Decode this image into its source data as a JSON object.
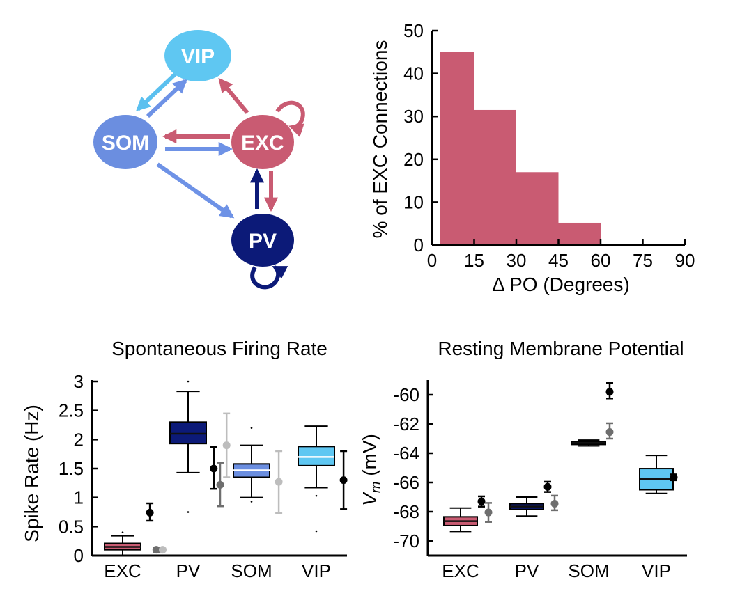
{
  "colors": {
    "exc": "#c95b72",
    "pv": "#0c1a78",
    "som": "#6b8ee0",
    "vip": "#5fc7f2",
    "vip_arrow": "#5bc0ef",
    "som_arrow": "#6e92e6",
    "mid_gray": "#6e6e6e",
    "light_gray": "#bdbdbd",
    "black": "#000000"
  },
  "network": {
    "nodes": {
      "vip": "VIP",
      "som": "SOM",
      "exc": "EXC",
      "pv": "PV"
    }
  },
  "chart_data": [
    {
      "type": "bar",
      "title": "",
      "xlabel": "Δ PO (Degrees)",
      "ylabel": "% of EXC Connections",
      "xlim": [
        0,
        90
      ],
      "ylim": [
        0,
        50
      ],
      "xticks": [
        "0",
        "15",
        "30",
        "45",
        "60",
        "75",
        "90"
      ],
      "yticks": [
        "0",
        "10",
        "20",
        "30",
        "40",
        "50"
      ],
      "bins": [
        [
          0,
          15
        ],
        [
          15,
          30
        ],
        [
          30,
          45
        ],
        [
          45,
          60
        ],
        [
          60,
          75
        ],
        [
          75,
          90
        ]
      ],
      "values": [
        45,
        31.5,
        17,
        5.2,
        0.3,
        0
      ],
      "color": "#c95b72"
    },
    {
      "type": "box",
      "title": "Spontaneous Firing Rate",
      "xlabel": "",
      "ylabel": "Spike Rate (Hz)",
      "ylim": [
        0,
        3
      ],
      "yticks": [
        "0",
        "0.5",
        "1",
        "1.5",
        "2",
        "2.5",
        "3"
      ],
      "categories": [
        "EXC",
        "PV",
        "SOM",
        "VIP"
      ],
      "boxes": [
        {
          "category": "EXC",
          "whisker_low": 0.0,
          "q1": 0.1,
          "median": 0.15,
          "q3": 0.21,
          "whisker_high": 0.34,
          "outliers": [
            0.4
          ],
          "color": "#c95b72",
          "median_color": "#111111"
        },
        {
          "category": "PV",
          "whisker_low": 1.43,
          "q1": 1.93,
          "median": 2.1,
          "q3": 2.3,
          "whisker_high": 2.83,
          "outliers": [
            3.0,
            0.75
          ],
          "color": "#0c1a78",
          "median_color": "#111111"
        },
        {
          "category": "SOM",
          "whisker_low": 1.0,
          "q1": 1.35,
          "median": 1.47,
          "q3": 1.58,
          "whisker_high": 1.9,
          "outliers": [
            2.2,
            0.93
          ],
          "color": "#6b8ee0",
          "median_color": "#ffffff"
        },
        {
          "category": "VIP",
          "whisker_low": 1.17,
          "q1": 1.55,
          "median": 1.7,
          "q3": 1.88,
          "whisker_high": 2.23,
          "outliers": [
            1.03,
            0.42
          ],
          "color": "#5fc7f2",
          "median_color": "#ffffff"
        }
      ],
      "points": [
        {
          "category": "EXC",
          "offset": 0.85,
          "mean": 0.74,
          "low": 0.6,
          "high": 0.9,
          "shade": "black"
        },
        {
          "category": "EXC",
          "offset": 1.05,
          "mean": 0.1,
          "low": 0.06,
          "high": 0.14,
          "shade": "mid_gray"
        },
        {
          "category": "EXC",
          "offset": 1.25,
          "mean": 0.1,
          "low": 0.08,
          "high": 0.12,
          "shade": "light_gray"
        },
        {
          "category": "PV",
          "offset": 0.8,
          "mean": 1.5,
          "low": 1.15,
          "high": 1.87,
          "shade": "black"
        },
        {
          "category": "PV",
          "offset": 1.0,
          "mean": 1.22,
          "low": 0.85,
          "high": 1.6,
          "shade": "mid_gray"
        },
        {
          "category": "PV",
          "offset": 1.2,
          "mean": 1.9,
          "low": 1.35,
          "high": 2.45,
          "shade": "light_gray"
        },
        {
          "category": "SOM",
          "offset": 0.85,
          "mean": 1.27,
          "low": 0.73,
          "high": 1.8,
          "shade": "light_gray"
        },
        {
          "category": "VIP",
          "offset": 0.85,
          "mean": 1.3,
          "low": 0.8,
          "high": 1.8,
          "shade": "black"
        }
      ]
    },
    {
      "type": "box",
      "title": "Resting Membrane Potential",
      "xlabel": "",
      "ylabel_italic": "V",
      "ylabel_sub": "m",
      "ylabel_rest": " (mV)",
      "ylim": [
        -71,
        -59
      ],
      "yticks": [
        "-70",
        "-68",
        "-66",
        "-64",
        "-62",
        "-60"
      ],
      "categories": [
        "EXC",
        "PV",
        "SOM",
        "VIP"
      ],
      "boxes": [
        {
          "category": "EXC",
          "whisker_low": -69.35,
          "q1": -68.95,
          "median": -68.65,
          "q3": -68.35,
          "whisker_high": -67.75,
          "outliers": [],
          "color": "#c95b72",
          "median_color": "#111111"
        },
        {
          "category": "PV",
          "whisker_low": -68.3,
          "q1": -67.85,
          "median": -67.65,
          "q3": -67.45,
          "whisker_high": -67.0,
          "outliers": [],
          "color": "#0c1a78",
          "median_color": "#111111"
        },
        {
          "category": "SOM",
          "whisker_low": -63.5,
          "q1": -63.4,
          "median": -63.3,
          "q3": -63.2,
          "whisker_high": -63.1,
          "outliers": [],
          "color": "#6b8ee0",
          "median_color": "#111111"
        },
        {
          "category": "VIP",
          "whisker_low": -66.75,
          "q1": -66.5,
          "median": -65.75,
          "q3": -65.05,
          "whisker_high": -64.15,
          "outliers": [],
          "color": "#5fc7f2",
          "median_color": "#111111"
        }
      ],
      "points": [
        {
          "category": "EXC",
          "offset": 0.6,
          "mean": -67.3,
          "low": -67.65,
          "high": -66.95,
          "shade": "black"
        },
        {
          "category": "EXC",
          "offset": 0.8,
          "mean": -68.05,
          "low": -68.7,
          "high": -67.4,
          "shade": "mid_gray"
        },
        {
          "category": "PV",
          "offset": 0.6,
          "mean": -66.3,
          "low": -66.65,
          "high": -65.95,
          "shade": "black"
        },
        {
          "category": "PV",
          "offset": 0.8,
          "mean": -67.45,
          "low": -67.9,
          "high": -66.9,
          "shade": "mid_gray"
        },
        {
          "category": "SOM",
          "offset": 0.6,
          "mean": -59.8,
          "low": -60.25,
          "high": -59.2,
          "shade": "black"
        },
        {
          "category": "SOM",
          "offset": 0.6,
          "mean": -62.55,
          "low": -63.0,
          "high": -61.95,
          "shade": "mid_gray"
        },
        {
          "category": "VIP",
          "offset": 0.5,
          "mean": -65.65,
          "low": -65.85,
          "high": -65.45,
          "shade": "black"
        }
      ]
    }
  ]
}
